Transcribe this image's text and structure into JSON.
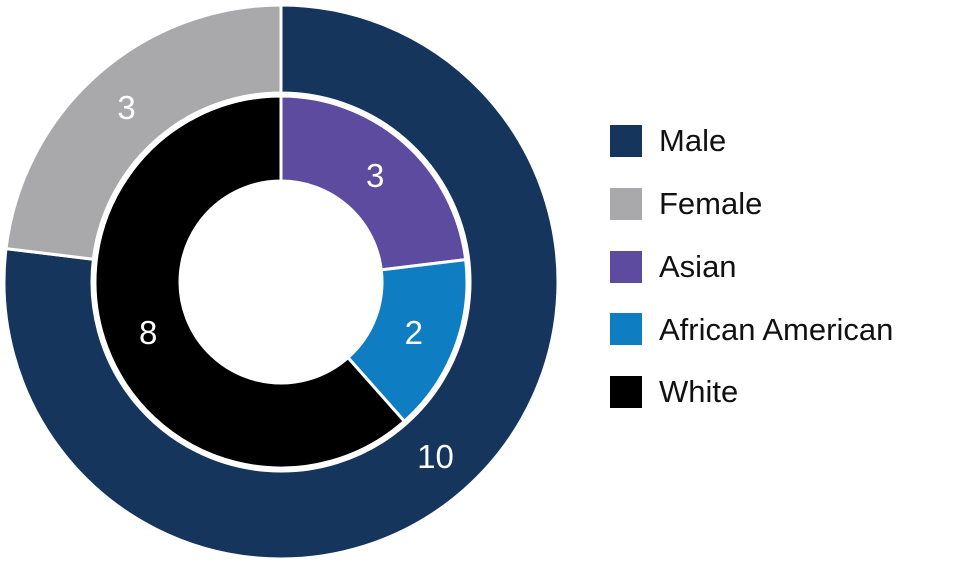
{
  "chart_data": {
    "type": "pie",
    "variant": "nested-donut",
    "direction": "clockwise",
    "start_angle_deg": 0,
    "background_color": "#FFFFFF",
    "separator_color": "#FFFFFF",
    "value_label_color": "#FFFFFF",
    "legend_position": "right",
    "rings": [
      {
        "name": "outer",
        "total": 13,
        "segments": [
          {
            "label": "Male",
            "value": 10,
            "color": "#16355D"
          },
          {
            "label": "Female",
            "value": 3,
            "color": "#A9A9AC"
          }
        ]
      },
      {
        "name": "inner",
        "total": 13,
        "segments": [
          {
            "label": "Asian",
            "value": 3,
            "color": "#5C4B9E"
          },
          {
            "label": "African American",
            "value": 2,
            "color": "#0F7DC2"
          },
          {
            "label": "White",
            "value": 8,
            "color": "#000000"
          }
        ]
      }
    ],
    "legend": [
      {
        "label": "Male",
        "color": "#16355D"
      },
      {
        "label": "Female",
        "color": "#A9A9AC"
      },
      {
        "label": "Asian",
        "color": "#5C4B9E"
      },
      {
        "label": "African American",
        "color": "#0F7DC2"
      },
      {
        "label": "White",
        "color": "#000000"
      }
    ]
  }
}
